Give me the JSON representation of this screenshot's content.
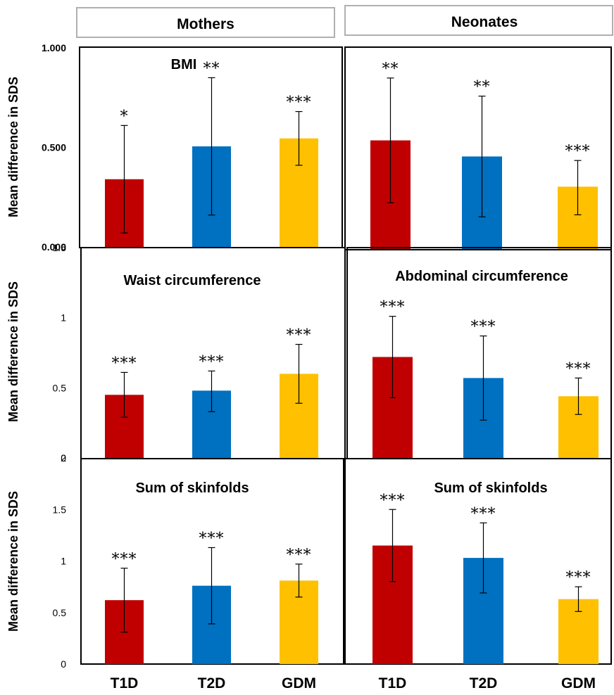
{
  "headers": {
    "mothers": "Mothers",
    "neonates": "Neonates"
  },
  "colors": {
    "T1D": "#c00000",
    "T2D": "#0070c0",
    "GDM": "#ffc000"
  },
  "chart_data": [
    {
      "type": "bar",
      "title": "BMI",
      "ylabel": "Mean difference in SDS",
      "categories": [
        "T1D",
        "T2D",
        "GDM"
      ],
      "values": [
        0.34,
        0.505,
        0.545
      ],
      "error_low": [
        0.07,
        0.16,
        0.41
      ],
      "error_high": [
        0.61,
        0.85,
        0.68
      ],
      "significance": [
        "*",
        "**",
        "***"
      ],
      "ylim": [
        0,
        1.0
      ],
      "yticks": [
        0,
        0.5,
        1.0
      ],
      "ytick_labels": [
        "0.000",
        "0.500",
        "1.000"
      ]
    },
    {
      "type": "bar",
      "title": "",
      "ylabel": "",
      "categories": [
        "T1D",
        "T2D",
        "GDM"
      ],
      "values": [
        0.54,
        0.46,
        0.31
      ],
      "error_low": [
        0.23,
        0.16,
        0.17
      ],
      "error_high": [
        0.85,
        0.76,
        0.44
      ],
      "significance": [
        "**",
        "**",
        "***"
      ],
      "ylim": [
        0,
        1.0
      ]
    },
    {
      "type": "bar",
      "title": "Waist circumference",
      "ylabel": "Mean difference in SDS",
      "categories": [
        "T1D",
        "T2D",
        "GDM"
      ],
      "values": [
        0.45,
        0.48,
        0.6
      ],
      "error_low": [
        0.29,
        0.33,
        0.39
      ],
      "error_high": [
        0.61,
        0.62,
        0.81
      ],
      "significance": [
        "***",
        "***",
        "***"
      ],
      "ylim": [
        0,
        1.5
      ],
      "yticks": [
        0,
        0.5,
        1,
        1.5
      ],
      "ytick_labels": [
        "0",
        "0.5",
        "1",
        "1.5"
      ]
    },
    {
      "type": "bar",
      "title": "Abdominal circumference",
      "ylabel": "",
      "categories": [
        "T1D",
        "T2D",
        "GDM"
      ],
      "values": [
        0.72,
        0.57,
        0.44
      ],
      "error_low": [
        0.43,
        0.27,
        0.31
      ],
      "error_high": [
        1.01,
        0.87,
        0.57
      ],
      "significance": [
        "***",
        "***",
        "***"
      ],
      "ylim": [
        0,
        1.5
      ]
    },
    {
      "type": "bar",
      "title": "Sum of skinfolds",
      "ylabel": "Mean difference in SDS",
      "categories": [
        "T1D",
        "T2D",
        "GDM"
      ],
      "values": [
        0.62,
        0.76,
        0.81
      ],
      "error_low": [
        0.31,
        0.39,
        0.65
      ],
      "error_high": [
        0.93,
        1.13,
        0.97
      ],
      "significance": [
        "***",
        "***",
        "***"
      ],
      "ylim": [
        0,
        2
      ],
      "yticks": [
        0,
        0.5,
        1,
        1.5,
        2
      ],
      "ytick_labels": [
        "0",
        "0.5",
        "1",
        "1.5",
        "2"
      ]
    },
    {
      "type": "bar",
      "title": "Sum of skinfolds",
      "ylabel": "",
      "categories": [
        "T1D",
        "T2D",
        "GDM"
      ],
      "values": [
        1.15,
        1.03,
        0.63
      ],
      "error_low": [
        0.8,
        0.69,
        0.51
      ],
      "error_high": [
        1.5,
        1.37,
        0.75
      ],
      "significance": [
        "***",
        "***",
        "***"
      ],
      "ylim": [
        0,
        2
      ]
    }
  ]
}
